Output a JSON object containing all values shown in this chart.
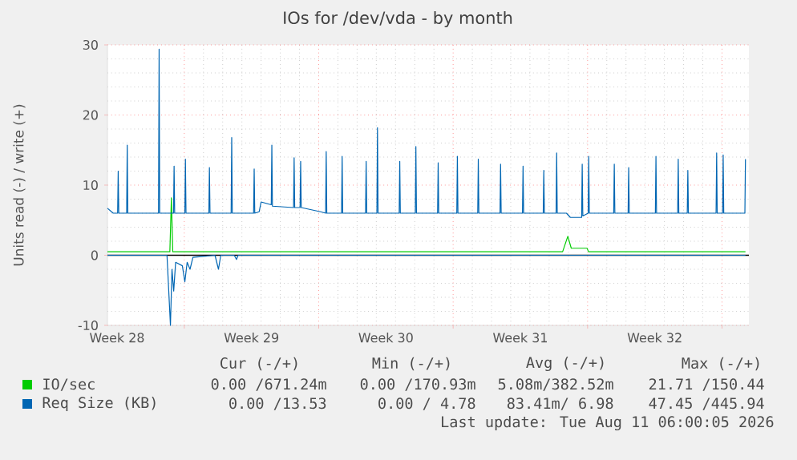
{
  "chart_data": {
    "type": "line",
    "title": "IOs for /dev/vda - by month",
    "ylabel": "Units read (-) / write (+)",
    "xlim": [
      "2026-07-09T00:00",
      "2026-08-11T09:36"
    ],
    "ylim": [
      -10,
      30
    ],
    "yticks": [
      -10,
      0,
      10,
      20,
      30
    ],
    "xticks": [
      {
        "value": "2026-07-09T12:00",
        "label": "Week 28"
      },
      {
        "value": "2026-07-13T00:00",
        "label": null
      },
      {
        "value": "2026-07-16T12:00",
        "label": "Week 29"
      },
      {
        "value": "2026-07-20T00:00",
        "label": null
      },
      {
        "value": "2026-07-23T12:00",
        "label": "Week 30"
      },
      {
        "value": "2026-07-27T00:00",
        "label": null
      },
      {
        "value": "2026-07-30T12:00",
        "label": "Week 31"
      },
      {
        "value": "2026-08-03T00:00",
        "label": null
      },
      {
        "value": "2026-08-06T12:00",
        "label": "Week 32"
      },
      {
        "value": "2026-08-10T00:00",
        "label": null
      }
    ],
    "grid": true,
    "legend": "bottom",
    "ref_lines": [
      {
        "axis": "y",
        "value": 0,
        "color": "#000000"
      }
    ],
    "series": [
      {
        "name": "IO/sec",
        "color": "#00cc00",
        "x": [
          "2026-07-09T00:00",
          "2026-07-12T06:00",
          "2026-07-12T07:55",
          "2026-07-12T09:36",
          "2026-08-01T16:48",
          "2026-08-01T23:17",
          "2026-08-02T03:36",
          "2026-08-02T23:17",
          "2026-08-03T01:12",
          "2026-08-11T05:17"
        ],
        "values": [
          0.5,
          0.5,
          8.2,
          0.5,
          0.5,
          2.7,
          1.0,
          1.0,
          0.5,
          0.5
        ]
      },
      {
        "name": "Req Size (KB)",
        "color": "#0066b3",
        "x": [
          "2026-07-09T00:00",
          "2026-07-09T07:12",
          "2026-07-09T12:43",
          "2026-07-09T13:26",
          "2026-07-09T14:10",
          "2026-07-10T00:00",
          "2026-07-10T00:43",
          "2026-07-10T01:26",
          "2026-07-11T15:50",
          "2026-07-11T16:34",
          "2026-07-11T17:17",
          "2026-07-12T10:34",
          "2026-07-12T11:17",
          "2026-07-12T12:00",
          "2026-07-13T00:43",
          "2026-07-13T01:26",
          "2026-07-13T02:10",
          "2026-07-14T06:43",
          "2026-07-14T07:26",
          "2026-07-14T08:10",
          "2026-07-15T10:34",
          "2026-07-15T11:17",
          "2026-07-15T12:00",
          "2026-07-16T14:38",
          "2026-07-16T15:22",
          "2026-07-16T16:05",
          "2026-07-16T21:36",
          "2026-07-17T00:00",
          "2026-07-17T12:43",
          "2026-07-17T13:26",
          "2026-07-17T14:10",
          "2026-07-18T16:34",
          "2026-07-18T17:17",
          "2026-07-18T18:00",
          "2026-07-19T00:43",
          "2026-07-19T01:26",
          "2026-07-19T02:10",
          "2026-07-20T02:24",
          "2026-07-20T08:38",
          "2026-07-20T09:22",
          "2026-07-20T10:05",
          "2026-07-21T04:34",
          "2026-07-21T05:17",
          "2026-07-21T06:00",
          "2026-07-22T10:34",
          "2026-07-22T11:17",
          "2026-07-22T12:00",
          "2026-07-23T00:43",
          "2026-07-23T01:26",
          "2026-07-23T02:10",
          "2026-07-24T04:34",
          "2026-07-24T05:17",
          "2026-07-24T06:00",
          "2026-07-25T00:43",
          "2026-07-25T01:26",
          "2026-07-25T02:10",
          "2026-07-26T04:34",
          "2026-07-26T05:17",
          "2026-07-26T06:00",
          "2026-07-27T04:34",
          "2026-07-27T05:17",
          "2026-07-27T06:00",
          "2026-07-28T06:43",
          "2026-07-28T07:26",
          "2026-07-28T08:10",
          "2026-07-29T10:34",
          "2026-07-29T11:17",
          "2026-07-29T12:00",
          "2026-07-30T14:38",
          "2026-07-30T15:22",
          "2026-07-30T16:05",
          "2026-07-31T16:34",
          "2026-07-31T17:17",
          "2026-07-31T18:00",
          "2026-08-01T08:38",
          "2026-08-01T09:22",
          "2026-08-01T10:05",
          "2026-08-01T21:36",
          "2026-08-02T02:24",
          "2026-08-02T16:34",
          "2026-08-02T17:17",
          "2026-08-02T18:00",
          "2026-08-03T00:43",
          "2026-08-03T01:26",
          "2026-08-03T02:10",
          "2026-08-04T08:38",
          "2026-08-04T09:22",
          "2026-08-04T10:05",
          "2026-08-05T02:38",
          "2026-08-05T03:22",
          "2026-08-05T04:05",
          "2026-08-06T12:43",
          "2026-08-06T13:26",
          "2026-08-06T14:10",
          "2026-08-07T16:34",
          "2026-08-07T17:17",
          "2026-08-07T18:00",
          "2026-08-08T04:34",
          "2026-08-08T05:17",
          "2026-08-08T06:00",
          "2026-08-09T16:34",
          "2026-08-09T17:17",
          "2026-08-09T18:00",
          "2026-08-10T00:43",
          "2026-08-10T01:26",
          "2026-08-10T02:10",
          "2026-08-11T04:34",
          "2026-08-11T05:17"
        ],
        "values": [
          6.7,
          6.0,
          6.0,
          12.0,
          6.0,
          6.0,
          15.7,
          6.0,
          6.0,
          29.4,
          6.0,
          6.0,
          12.7,
          6.0,
          6.0,
          13.7,
          6.0,
          6.0,
          12.5,
          6.0,
          6.0,
          16.8,
          6.0,
          6.0,
          12.3,
          6.0,
          6.2,
          7.6,
          7.2,
          15.7,
          7.0,
          6.8,
          13.9,
          6.8,
          6.8,
          13.4,
          6.8,
          6.2,
          6.0,
          14.8,
          6.0,
          6.0,
          14.1,
          6.0,
          6.0,
          13.4,
          6.0,
          6.0,
          18.2,
          6.0,
          6.0,
          13.4,
          6.0,
          6.0,
          15.5,
          6.0,
          6.0,
          13.2,
          6.0,
          6.0,
          14.1,
          6.0,
          6.0,
          13.7,
          6.0,
          6.0,
          13.0,
          6.0,
          6.0,
          12.7,
          6.0,
          6.0,
          12.1,
          6.0,
          6.0,
          14.6,
          6.0,
          6.0,
          5.4,
          5.4,
          13.0,
          5.6,
          6.0,
          14.1,
          6.0,
          6.0,
          13.0,
          6.0,
          6.0,
          12.5,
          6.0,
          6.0,
          14.1,
          6.0,
          6.0,
          13.7,
          6.0,
          6.0,
          12.1,
          6.0,
          6.0,
          14.6,
          6.0,
          6.0,
          14.3,
          6.0,
          6.0,
          13.7
        ]
      },
      {
        "color": "#0066b3",
        "x": [
          "2026-07-09T00:00",
          "2026-07-12T02:24",
          "2026-07-12T06:43",
          "2026-07-12T08:38",
          "2026-07-12T10:48",
          "2026-07-12T13:12",
          "2026-07-12T21:36",
          "2026-07-13T00:43",
          "2026-07-13T03:36",
          "2026-07-13T07:12",
          "2026-07-13T10:48",
          "2026-07-14T14:24",
          "2026-07-14T18:43",
          "2026-07-14T21:36",
          "2026-07-15T14:24",
          "2026-07-15T17:17",
          "2026-07-15T19:12",
          "2026-08-11T05:17"
        ],
        "values": [
          0,
          0,
          -10,
          -2,
          -5.1,
          -1,
          -1.5,
          -3.8,
          -1,
          -2,
          -0.3,
          0,
          -2.0,
          0,
          0,
          -0.6,
          0,
          0
        ]
      }
    ],
    "annotations": [
      "Cur (-/+)",
      "Min (-/+)",
      "Avg (-/+)",
      "Max (-/+)",
      "0.00 /671.24m",
      "0.00 /170.93m",
      "5.08m/382.52m",
      "21.71 /150.44",
      "0.00 /13.53",
      "0.00 / 4.78",
      "83.41m/ 6.98",
      "47.45 /445.94",
      "Last update: Tue Aug 11 06:00:05 2026"
    ]
  }
}
